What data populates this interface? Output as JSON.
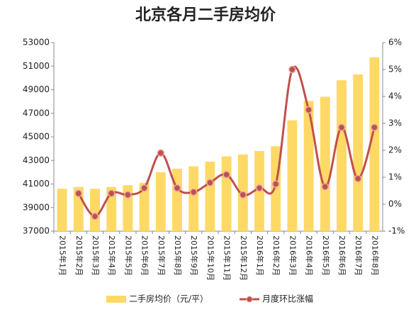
{
  "chart_data": {
    "type": "bar-line",
    "title": "北京各月二手房均价",
    "categories": [
      "2015年1月",
      "2015年2月",
      "2015年3月",
      "2015年4月",
      "2015年5月",
      "2015年6月",
      "2015年7月",
      "2015年8月",
      "2015年9月",
      "2015年10月",
      "2015年11月",
      "2015年12月",
      "2016年1月",
      "2016年2月",
      "2016年3月",
      "2016年4月",
      "2016年5月",
      "2016年6月",
      "2016年7月",
      "2016年8月"
    ],
    "series": [
      {
        "name": "二手房均价（元/平）",
        "type": "bar",
        "color": "#ffd966",
        "values": [
          40600,
          40750,
          40600,
          40750,
          40900,
          41100,
          42000,
          42300,
          42500,
          42900,
          43350,
          43500,
          43800,
          44200,
          46400,
          48050,
          48400,
          49800,
          50300,
          51750
        ]
      },
      {
        "name": "月度环比涨幅",
        "type": "line",
        "axis": "y2",
        "color": "#c0504d",
        "values": [
          null,
          0.4,
          -0.45,
          0.4,
          0.35,
          0.6,
          1.9,
          0.6,
          0.45,
          0.8,
          1.1,
          0.35,
          0.6,
          0.75,
          5.0,
          3.5,
          0.65,
          2.85,
          0.95,
          2.85
        ]
      }
    ],
    "ylim": [
      37000,
      53000
    ],
    "yticks": [
      37000,
      39000,
      41000,
      43000,
      45000,
      47000,
      49000,
      51000,
      53000
    ],
    "y2lim": [
      -1,
      6
    ],
    "y2ticks": [
      {
        "value": -1,
        "label": "-1%"
      },
      {
        "value": 0,
        "label": "0%"
      },
      {
        "value": 1,
        "label": "1%"
      },
      {
        "value": 2,
        "label": "2%"
      },
      {
        "value": 3,
        "label": "3%"
      },
      {
        "value": 4,
        "label": "4%"
      },
      {
        "value": 5,
        "label": "5%"
      },
      {
        "value": 6,
        "label": "6%"
      }
    ],
    "legend": "bottom"
  }
}
